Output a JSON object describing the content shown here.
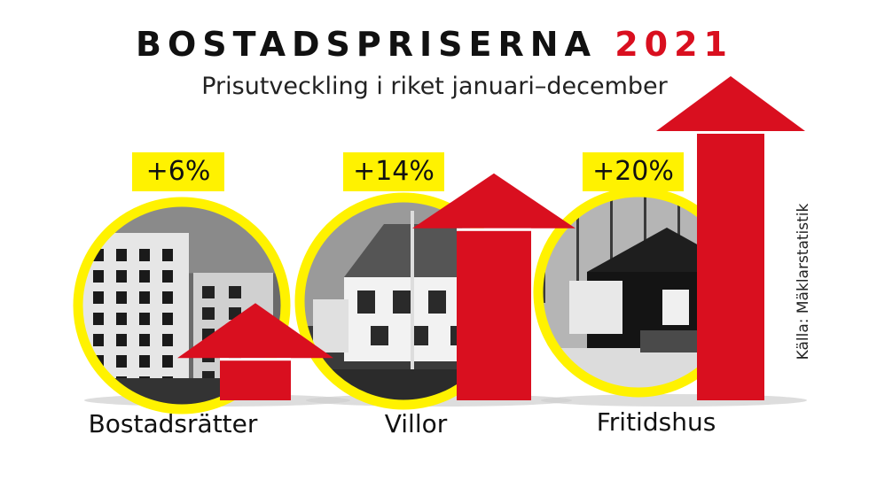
{
  "chart_data": {
    "type": "bar",
    "title": "BOSTADSPRISERNA",
    "title_year": "2021",
    "subtitle": "Prisutveckling i riket januari–december",
    "categories": [
      "Bostadsrätter",
      "Villor",
      "Fritidshus"
    ],
    "values": [
      6,
      14,
      20
    ],
    "value_labels": [
      "+6%",
      "+14%",
      "+20%"
    ],
    "unit": "%",
    "source": "Källa: Mäklarstatistik",
    "ylim": [
      0,
      20
    ],
    "grid": false,
    "legend": "none"
  },
  "colors": {
    "arrow": "#d90f1f",
    "badge": "#fff200",
    "ring": "#fff200",
    "year": "#d90f1f"
  }
}
